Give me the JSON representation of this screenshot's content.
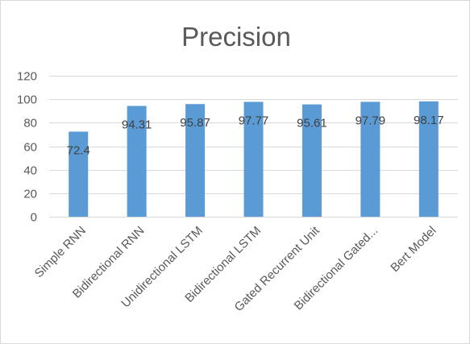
{
  "chart_data": {
    "type": "bar",
    "title": "Precision",
    "categories": [
      "Simple RNN",
      "Bidirectional RNN",
      "Unidirectional LSTM",
      "Bidirectional LSTM",
      "Gated Recurrent Unit",
      "Bidirectional Gated...",
      "Bert Model"
    ],
    "values": [
      72.4,
      94.31,
      95.87,
      97.77,
      95.61,
      97.79,
      98.17
    ],
    "data_labels": [
      "72.4",
      "94.31",
      "95.87",
      "97.77",
      "95.61",
      "97.79",
      "98.17"
    ],
    "xlabel": "",
    "ylabel": "",
    "ylim": [
      0,
      120
    ],
    "yticks": [
      0,
      20,
      40,
      60,
      80,
      100,
      120
    ],
    "grid": true,
    "legend": "none",
    "colors": {
      "bar": "#5b9bd5",
      "grid": "#d9d9d9",
      "text": "#595959"
    }
  }
}
